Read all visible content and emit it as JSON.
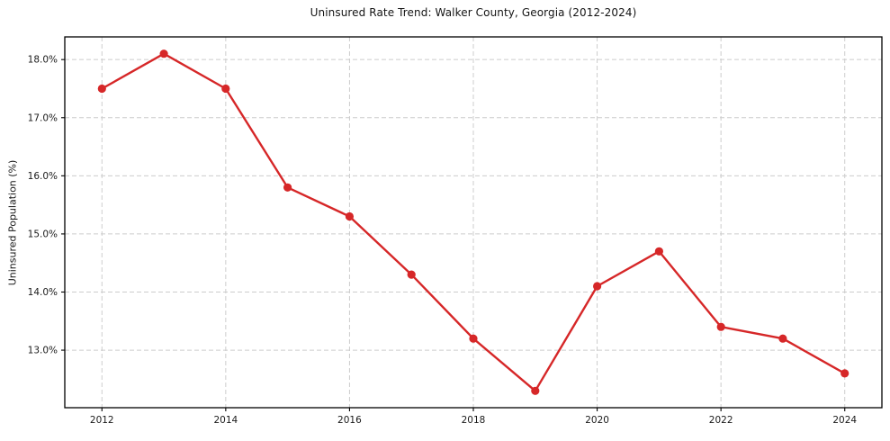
{
  "figure": {
    "title": "Uninsured Rate Trend: Walker County, Georgia (2012-2024)",
    "ylabel": "Uninsured Population (%)"
  },
  "chart_data": {
    "type": "line",
    "title": "Uninsured Rate Trend: Walker County, Georgia (2012-2024)",
    "xlabel": "",
    "ylabel": "Uninsured Population (%)",
    "series": [
      {
        "name": "Uninsured rate",
        "x": [
          2012,
          2013,
          2014,
          2015,
          2016,
          2017,
          2018,
          2019,
          2020,
          2021,
          2022,
          2023,
          2024
        ],
        "values": [
          17.5,
          18.1,
          17.5,
          15.8,
          15.3,
          14.3,
          13.2,
          12.3,
          14.1,
          14.7,
          13.4,
          13.2,
          12.6
        ]
      }
    ],
    "xticks": {
      "values": [
        2012,
        2014,
        2016,
        2018,
        2020,
        2022,
        2024
      ],
      "labels": [
        "2012",
        "2014",
        "2016",
        "2018",
        "2020",
        "2022",
        "2024"
      ]
    },
    "yticks": {
      "values": [
        13.0,
        14.0,
        15.0,
        16.0,
        17.0,
        18.0
      ],
      "labels": [
        "13.0%",
        "14.0%",
        "15.0%",
        "16.0%",
        "17.0%",
        "18.0%"
      ]
    },
    "xlim": [
      2011.4,
      2024.6
    ],
    "ylim": [
      12.01,
      18.39
    ],
    "grid": true,
    "grid_style": "dashed",
    "legend": false,
    "marker": "circle",
    "colors": {
      "line": "#d62728",
      "marker": "#d62728",
      "grid": "#cccccc",
      "axis_frame": "#000000",
      "tick_text": "#1a1a1a",
      "background": "#ffffff"
    }
  }
}
